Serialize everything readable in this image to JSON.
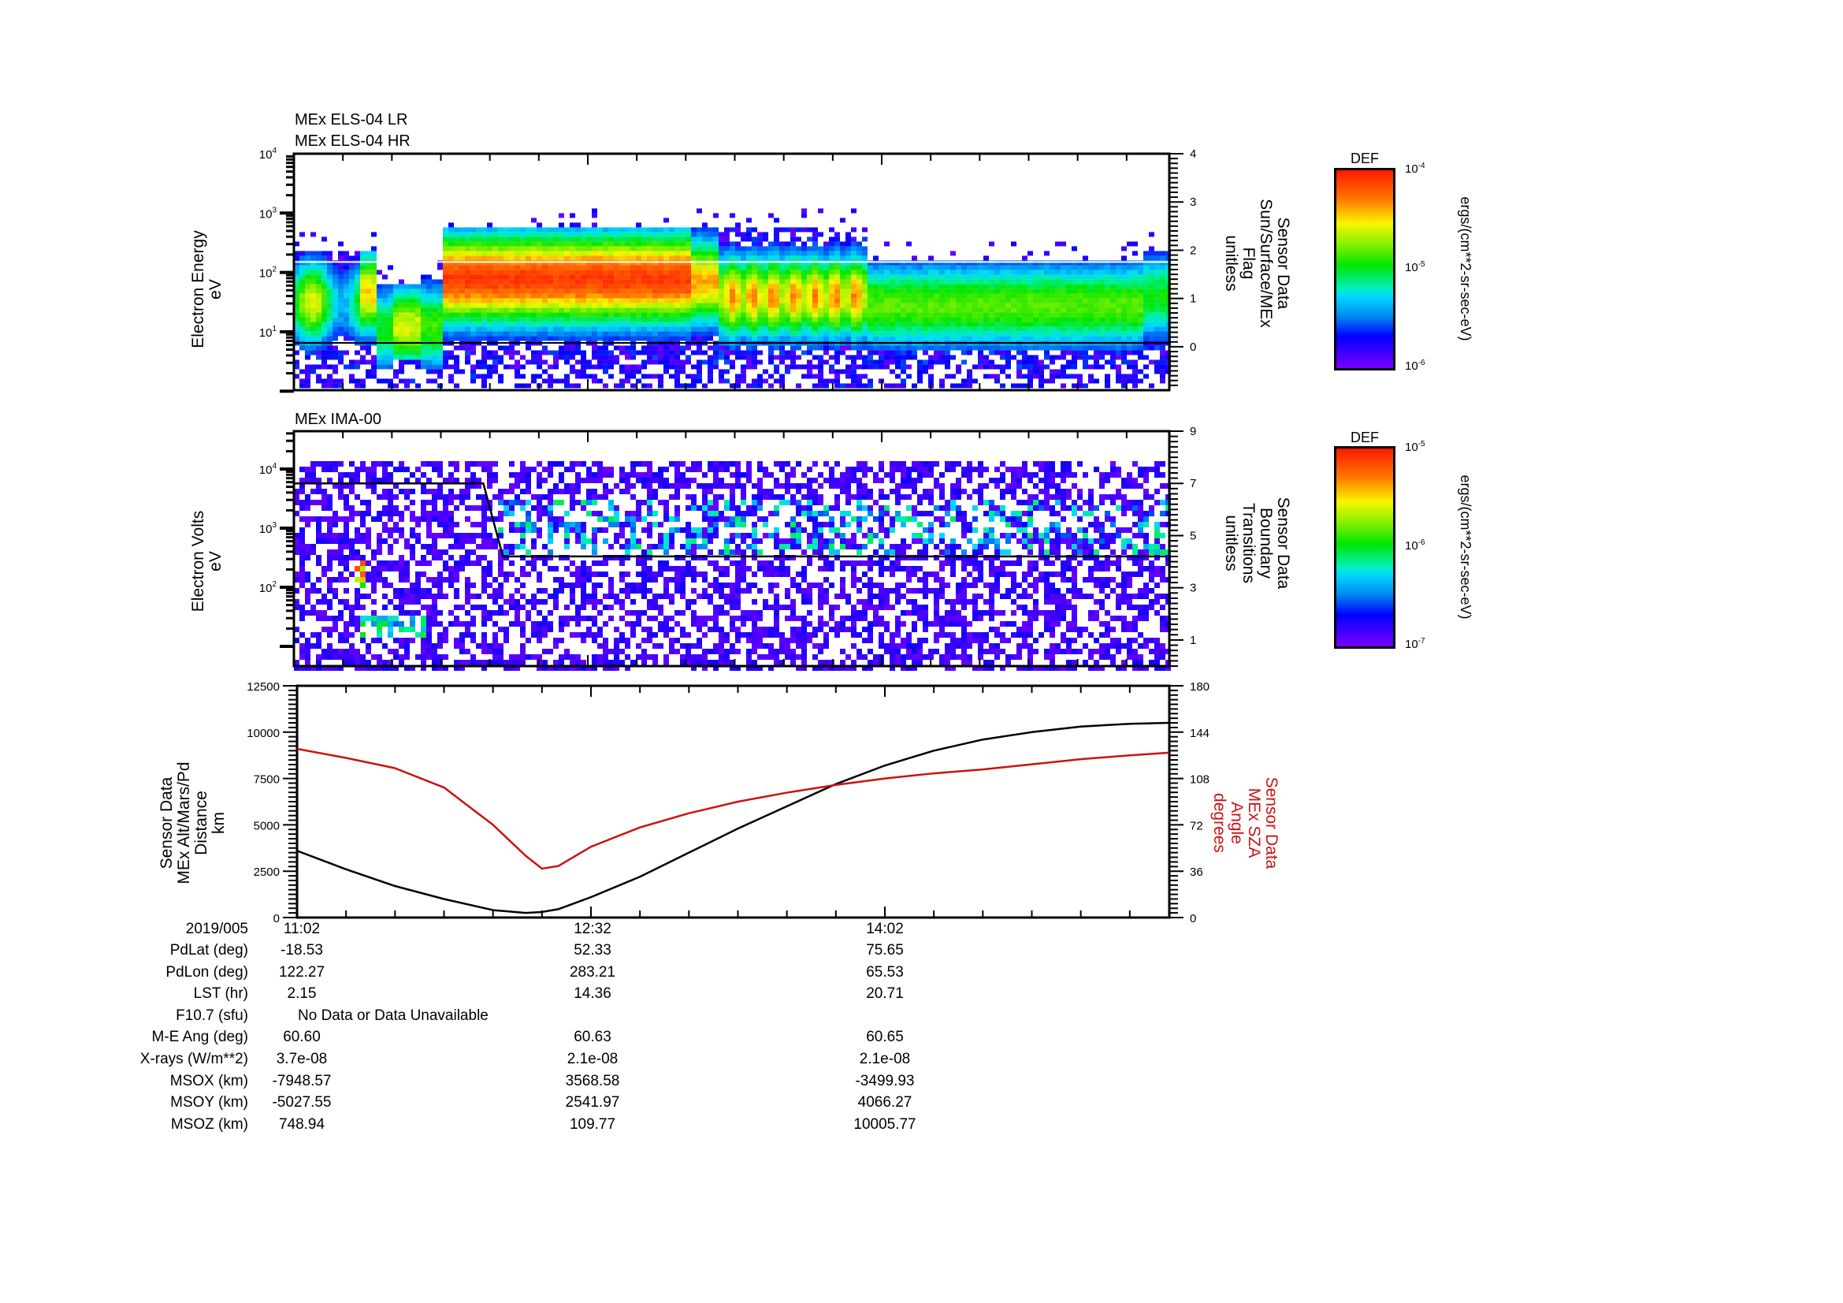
{
  "chart_data": [
    {
      "type": "heatmap",
      "panel": 1,
      "titles": [
        "MEx ELS-04 LR",
        "MEx ELS-04 HR"
      ],
      "ylabel": [
        "Electron Energy",
        "eV"
      ],
      "yscale": "log",
      "ylim": [
        1,
        10000
      ],
      "yticks": [
        "10^1",
        "10^2",
        "10^3",
        "10^4"
      ],
      "y2label": [
        "Sensor Data",
        "Sun/Surface/MEx",
        "Flag",
        "unitless"
      ],
      "y2lim": [
        -0.9,
        4
      ],
      "y2ticks": [
        0,
        1,
        2,
        3,
        4
      ],
      "overlay_lines": [
        {
          "color": "#ffffff",
          "energy_eV": 150
        },
        {
          "color": "#000000",
          "energy_eV": 6.5
        }
      ],
      "colorbar": {
        "title": "DEF",
        "min": "10^-6",
        "mid": "10^-5",
        "max": "10^-4",
        "units": "ergs/(cm**2-sr-sec-eV)"
      },
      "description": "Electron spectrogram; broad green/cyan band 5-200 eV; intense red core ~30-150 eV from ~12:00 to ~13:15; weaker orange patches 13:35-14:05; fades to green after 14:15"
    },
    {
      "type": "heatmap",
      "panel": 2,
      "titles": [
        "MEx IMA-00"
      ],
      "ylabel": [
        "Electron Volts",
        "eV"
      ],
      "yscale": "log",
      "ylim": [
        10,
        40000
      ],
      "yticks": [
        "10^2",
        "10^3",
        "10^4"
      ],
      "y2label": [
        "Sensor Data",
        "Boundary",
        "Transitions",
        "unitless"
      ],
      "y2lim": [
        0,
        9
      ],
      "y2ticks": [
        1,
        3,
        5,
        7,
        9
      ],
      "overlay_lines": [
        {
          "color": "#000000",
          "from_time": "11:02",
          "to_time": "12:00",
          "value": 7
        },
        {
          "color": "#000000",
          "from_time": "12:04",
          "to_time": "15:29",
          "value": 4.2
        }
      ],
      "colorbar": {
        "title": "DEF",
        "min": "10^-7",
        "mid": "10^-6",
        "max": "10^-5",
        "units": "ergs/(cm**2-sr-sec-eV)"
      },
      "description": "Sparse purple/blue ion counts; localized hot spot (red) near 100-200 eV ~11:20; cyan/green streaks 500-3000 eV after 12:05"
    },
    {
      "type": "line",
      "panel": 3,
      "ylabel": [
        "Sensor Data",
        "MEx Alt/Mars/Pd",
        "Distance",
        "km"
      ],
      "ylim": [
        0,
        12500
      ],
      "yticks": [
        0,
        2500,
        5000,
        7500,
        10000,
        12500
      ],
      "y2label": [
        "Sensor Data",
        "MEx SZA",
        "Angle",
        "degrees"
      ],
      "y2lim": [
        0,
        180
      ],
      "y2ticks": [
        0,
        36,
        72,
        108,
        144,
        180
      ],
      "x_minutes_from_start": [
        0,
        15,
        30,
        45,
        60,
        70,
        75,
        80,
        90,
        105,
        120,
        135,
        150,
        165,
        180,
        195,
        210,
        225,
        240,
        255,
        267
      ],
      "series": [
        {
          "name": "MEx Alt (km)",
          "color": "#000000",
          "axis": "left",
          "values": [
            3600,
            2600,
            1700,
            1000,
            400,
            250,
            300,
            450,
            1100,
            2200,
            3500,
            4800,
            6000,
            7200,
            8200,
            9000,
            9600,
            10000,
            10300,
            10450,
            10500
          ]
        },
        {
          "name": "MEx SZA (deg)",
          "color": "#cc1111",
          "axis": "right",
          "values": [
            131,
            124,
            116,
            101,
            72,
            48,
            38,
            40,
            55,
            70,
            81,
            90,
            97,
            103,
            108,
            112,
            115,
            119,
            123,
            126,
            128
          ]
        }
      ]
    }
  ],
  "time_axis": {
    "start": "11:02",
    "ticks": [
      "11:02",
      "12:32",
      "14:02"
    ],
    "date": "2019/005"
  },
  "ephemeris": {
    "rows": [
      {
        "label": "PdLat (deg)",
        "values": [
          "-18.53",
          "52.33",
          "75.65"
        ]
      },
      {
        "label": "PdLon (deg)",
        "values": [
          "122.27",
          "283.21",
          "65.53"
        ]
      },
      {
        "label": "LST (hr)",
        "values": [
          "2.15",
          "14.36",
          "20.71"
        ]
      },
      {
        "label": "F10.7 (sfu)",
        "note": "No Data or Data Unavailable"
      },
      {
        "label": "M-E Ang (deg)",
        "values": [
          "60.60",
          "60.63",
          "60.65"
        ]
      },
      {
        "label": "X-rays (W/m**2)",
        "values": [
          "3.7e-08",
          "2.1e-08",
          "2.1e-08"
        ]
      },
      {
        "label": "MSOX (km)",
        "values": [
          "-7948.57",
          "3568.58",
          "-3499.93"
        ]
      },
      {
        "label": "MSOY (km)",
        "values": [
          "-5027.55",
          "2541.97",
          "4066.27"
        ]
      },
      {
        "label": "MSOZ (km)",
        "values": [
          "748.94",
          "109.77",
          "10005.77"
        ]
      }
    ]
  },
  "colors": {
    "alt_line": "#000000",
    "sza_line": "#cc1111"
  }
}
